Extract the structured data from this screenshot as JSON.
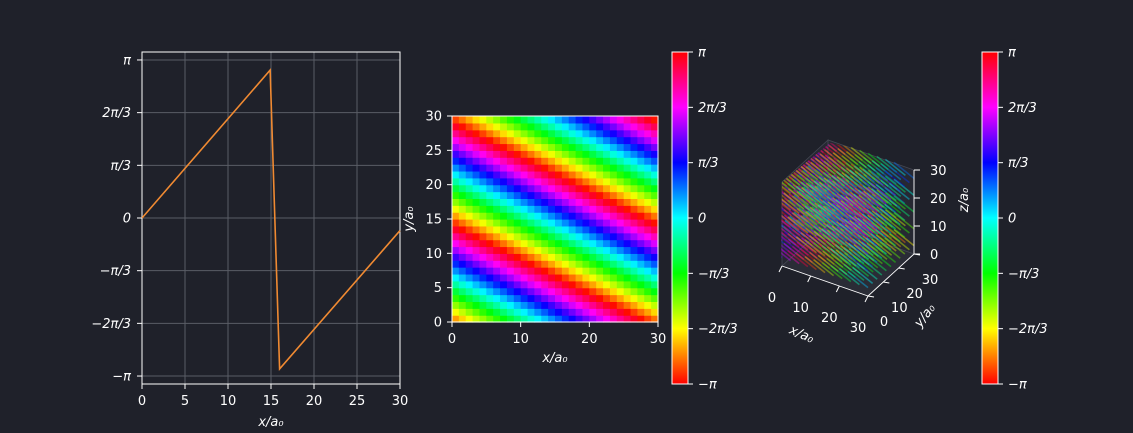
{
  "chart_data": [
    {
      "type": "line",
      "xlabel": "x/a₀",
      "ylabel": "",
      "xlim": [
        0,
        30
      ],
      "ylim": [
        -3.3,
        3.3
      ],
      "grid": true,
      "xticks": [
        "0",
        "5",
        "10",
        "15",
        "20",
        "25",
        "30"
      ],
      "yticks": [
        "−π",
        "−2π/3",
        "−π/3",
        "0",
        "π/3",
        "2π/3",
        "π"
      ],
      "line_color": "#f08a32",
      "series": [
        {
          "x": [
            0,
            14.9,
            16.0,
            30
          ],
          "y": [
            0,
            2.94,
            -3.0,
            -0.25
          ]
        }
      ]
    },
    {
      "type": "heatmap",
      "xlabel": "x/a₀",
      "ylabel": "y/a₀",
      "xlim": [
        0,
        30
      ],
      "ylim": [
        0,
        30
      ],
      "xticks": [
        "0",
        "10",
        "20",
        "30"
      ],
      "yticks": [
        "0",
        "5",
        "10",
        "15",
        "20",
        "25",
        "30"
      ],
      "grid_cells": 30,
      "phase_wave": {
        "kx": 0.21,
        "ky": 0.42,
        "offset": 3.8
      },
      "colormap": "hsv"
    },
    {
      "type": "colorbar",
      "range": [
        -3.14159,
        3.14159
      ],
      "ticks": [
        "−π",
        "−2π/3",
        "−π/3",
        "0",
        "π/3",
        "2π/3",
        "π"
      ],
      "colormap": "hsv"
    },
    {
      "type": "scatter3d",
      "xlabel": "x/a₀",
      "ylabel": "y/a₀",
      "zlabel": "z/a₀",
      "xticks": [
        "0",
        "10",
        "20",
        "30"
      ],
      "yticks": [
        "0",
        "10",
        "20",
        "30"
      ],
      "zticks": [
        "0",
        "10",
        "20",
        "30"
      ],
      "colormap": "hsv"
    },
    {
      "type": "colorbar",
      "range": [
        -3.14159,
        3.14159
      ],
      "ticks": [
        "−π",
        "−2π/3",
        "−π/3",
        "0",
        "π/3",
        "2π/3",
        "π"
      ],
      "colormap": "hsv"
    }
  ]
}
